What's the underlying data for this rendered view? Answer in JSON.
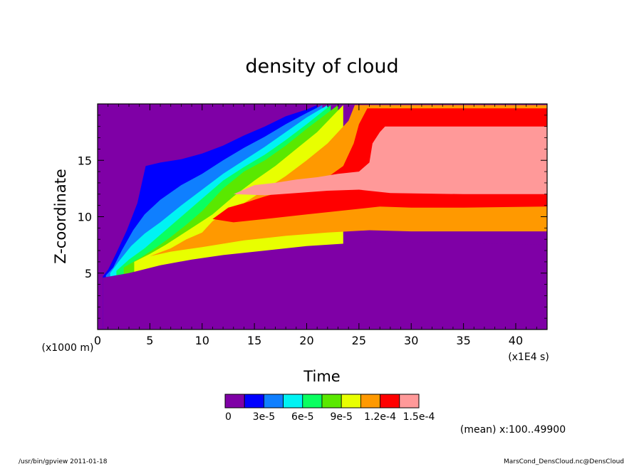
{
  "chart_data": {
    "type": "heatmap",
    "title": "density of cloud",
    "xlabel": "Time",
    "ylabel": "Z-coordinate",
    "x_unit": "(x1E4 s)",
    "y_unit": "(x1000 m)",
    "xlim": [
      0,
      43
    ],
    "ylim": [
      0,
      20
    ],
    "x_ticks": [
      0,
      5,
      10,
      15,
      20,
      25,
      30,
      35,
      40
    ],
    "y_ticks": [
      5,
      10,
      15
    ],
    "grid": false,
    "colorbar": {
      "placement": "bottom",
      "labels": [
        "0",
        "3e-5",
        "6e-5",
        "9e-5",
        "1.2e-4",
        "1.5e-4"
      ],
      "colors": [
        "#7f00a6",
        "#0000ff",
        "#0f7fff",
        "#00f3f3",
        "#0aff60",
        "#5ae800",
        "#e8ff00",
        "#ff9900",
        "#ff0000",
        "#ff9999"
      ]
    },
    "annotation": "(mean) x:100..49900",
    "contours": [
      {
        "level_index": 1,
        "points": [
          [
            0.5,
            4.7
          ],
          [
            1,
            5.3
          ],
          [
            1.8,
            6.8
          ],
          [
            2.8,
            8.8
          ],
          [
            3.8,
            11.2
          ],
          [
            4.6,
            14.5
          ],
          [
            6,
            14.8
          ],
          [
            8,
            15.1
          ],
          [
            10,
            15.6
          ],
          [
            12,
            16.3
          ],
          [
            14,
            17.2
          ],
          [
            16,
            18
          ],
          [
            18,
            18.9
          ],
          [
            20,
            19.5
          ],
          [
            21,
            19.9
          ],
          [
            21,
            0
          ],
          [
            0.5,
            0
          ]
        ]
      },
      {
        "level_index": 2,
        "points": [
          [
            0.8,
            4.8
          ],
          [
            1.5,
            5.5
          ],
          [
            2.3,
            7
          ],
          [
            3.4,
            8.8
          ],
          [
            4.5,
            10.2
          ],
          [
            6,
            11.5
          ],
          [
            8,
            12.8
          ],
          [
            10,
            13.8
          ],
          [
            12,
            15
          ],
          [
            14,
            16.1
          ],
          [
            16,
            17.1
          ],
          [
            18,
            18.2
          ],
          [
            20,
            19.2
          ],
          [
            21.5,
            19.9
          ],
          [
            21.5,
            0
          ],
          [
            0.8,
            0
          ]
        ]
      },
      {
        "level_index": 3,
        "points": [
          [
            1.2,
            5
          ],
          [
            2,
            6
          ],
          [
            3.2,
            7.4
          ],
          [
            4.5,
            8.5
          ],
          [
            6,
            9.5
          ],
          [
            8,
            11
          ],
          [
            10,
            12.4
          ],
          [
            12,
            13.8
          ],
          [
            14,
            15
          ],
          [
            16,
            16.2
          ],
          [
            18,
            17.5
          ],
          [
            20,
            18.8
          ],
          [
            22,
            19.9
          ],
          [
            22,
            0
          ],
          [
            1.2,
            0
          ]
        ]
      },
      {
        "level_index": 4,
        "points": [
          [
            1.8,
            5.2
          ],
          [
            3,
            6.2
          ],
          [
            4.5,
            7.2
          ],
          [
            6,
            8.4
          ],
          [
            8,
            10
          ],
          [
            10,
            11.6
          ],
          [
            12,
            13.2
          ],
          [
            14,
            14.4
          ],
          [
            16,
            15.5
          ],
          [
            18,
            16.8
          ],
          [
            20,
            18.2
          ],
          [
            22.3,
            19.9
          ],
          [
            22.3,
            0
          ],
          [
            1.8,
            0
          ]
        ]
      },
      {
        "level_index": 5,
        "points": [
          [
            2.5,
            5.5
          ],
          [
            4,
            6.3
          ],
          [
            5.5,
            7.2
          ],
          [
            7,
            8.2
          ],
          [
            8.5,
            9.3
          ],
          [
            10,
            10.5
          ],
          [
            12,
            12.5
          ],
          [
            14,
            14
          ],
          [
            16,
            15
          ],
          [
            18,
            16.3
          ],
          [
            20,
            17.8
          ],
          [
            23,
            19.9
          ],
          [
            23,
            0
          ],
          [
            2.5,
            0
          ]
        ]
      },
      {
        "level_index": 6,
        "points": [
          [
            3.5,
            6
          ],
          [
            5,
            6.7
          ],
          [
            6.5,
            7.5
          ],
          [
            8,
            8.4
          ],
          [
            9.5,
            9.3
          ],
          [
            11,
            10.2
          ],
          [
            13,
            11.8
          ],
          [
            15,
            13.2
          ],
          [
            17,
            14.5
          ],
          [
            19,
            16
          ],
          [
            21,
            17.5
          ],
          [
            23.5,
            19.9
          ],
          [
            23.5,
            0
          ],
          [
            3.5,
            0
          ]
        ]
      },
      {
        "level_index": 7,
        "points": [
          [
            5,
            6.5
          ],
          [
            7,
            7.2
          ],
          [
            8.5,
            8
          ],
          [
            10,
            8.6
          ],
          [
            11,
            9.6
          ],
          [
            12,
            10.2
          ],
          [
            14,
            11.2
          ],
          [
            16,
            12.4
          ],
          [
            18,
            13.6
          ],
          [
            20,
            15
          ],
          [
            22,
            16.5
          ],
          [
            24,
            18.5
          ],
          [
            24.6,
            19.9
          ],
          [
            43,
            19.9
          ],
          [
            43,
            8.7
          ],
          [
            30,
            8.7
          ],
          [
            26,
            8.8
          ],
          [
            22,
            8.6
          ],
          [
            18,
            8.3
          ],
          [
            14,
            7.9
          ],
          [
            10,
            7.3
          ],
          [
            7,
            6.9
          ],
          [
            5,
            6.5
          ]
        ]
      },
      {
        "level_index": 8,
        "points": [
          [
            11,
            9.8
          ],
          [
            12.5,
            10.8
          ],
          [
            14,
            11.2
          ],
          [
            16,
            11.8
          ],
          [
            18,
            12.3
          ],
          [
            20,
            12.8
          ],
          [
            22,
            13.5
          ],
          [
            23.5,
            14.5
          ],
          [
            24.5,
            16.5
          ],
          [
            25,
            18.2
          ],
          [
            25.8,
            19.6
          ],
          [
            43,
            19.6
          ],
          [
            43,
            10.9
          ],
          [
            35,
            10.8
          ],
          [
            30,
            10.8
          ],
          [
            27,
            10.9
          ],
          [
            24,
            10.6
          ],
          [
            20,
            10.2
          ],
          [
            16,
            9.8
          ],
          [
            13,
            9.5
          ],
          [
            11,
            9.8
          ]
        ]
      },
      {
        "level_index": 9,
        "points": [
          [
            13,
            12
          ],
          [
            15,
            12.8
          ],
          [
            17,
            13
          ],
          [
            19,
            13.3
          ],
          [
            21,
            13.5
          ],
          [
            23,
            13.8
          ],
          [
            25,
            14
          ],
          [
            26,
            14.8
          ],
          [
            26.3,
            16.5
          ],
          [
            27,
            17.5
          ],
          [
            27.5,
            18
          ],
          [
            43,
            18
          ],
          [
            43,
            12
          ],
          [
            35,
            12
          ],
          [
            28,
            12.1
          ],
          [
            25,
            12.4
          ],
          [
            22,
            12.3
          ],
          [
            19,
            12.1
          ],
          [
            16,
            11.9
          ],
          [
            13,
            12
          ]
        ]
      }
    ],
    "lower_boundary": [
      [
        0.5,
        4.6
      ],
      [
        3,
        5
      ],
      [
        6,
        5.7
      ],
      [
        9,
        6.2
      ],
      [
        12,
        6.6
      ],
      [
        16,
        7
      ],
      [
        20,
        7.4
      ],
      [
        25,
        7.7
      ],
      [
        28,
        7.8
      ],
      [
        43,
        7.5
      ]
    ]
  },
  "footer": {
    "left": "/usr/bin/gpview  2011-01-18",
    "right": "MarsCond_DensCloud.nc@DensCloud"
  }
}
